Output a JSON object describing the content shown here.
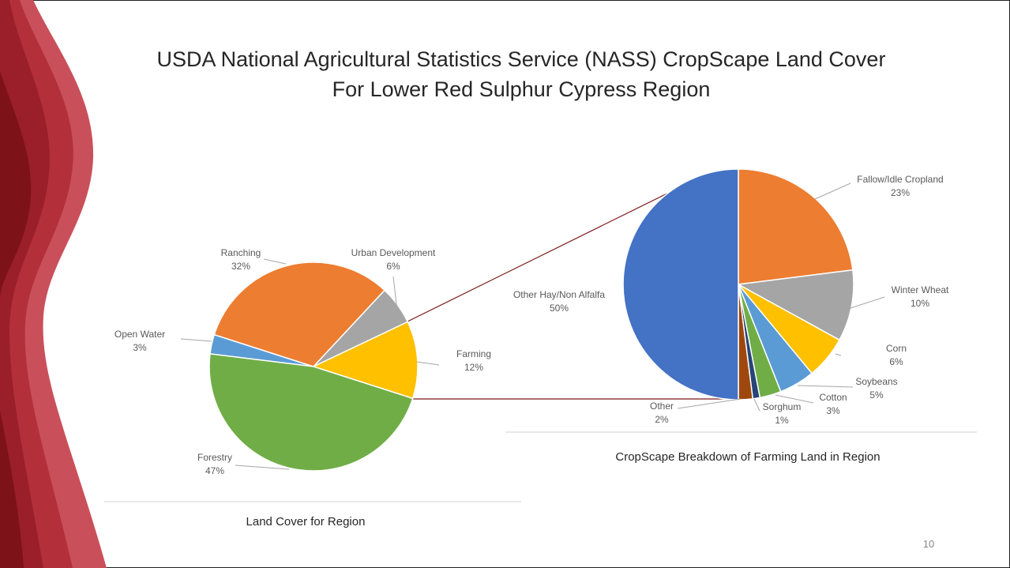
{
  "title": [
    "USDA National Agricultural Statistics Service (NASS) CropScape Land Cover",
    "For Lower Red Sulphur Cypress Region"
  ],
  "page_number": 10,
  "chart_data": [
    {
      "type": "pie",
      "title": "Land Cover for Region",
      "categories": [
        "Open Water",
        "Ranching",
        "Urban Development",
        "Farming",
        "Forestry"
      ],
      "values": [
        3,
        32,
        6,
        12,
        47
      ],
      "value_labels": [
        "3%",
        "32%",
        "6%",
        "12%",
        "47%"
      ],
      "colors": [
        "#5b9bd5",
        "#ed7d31",
        "#a5a5a5",
        "#ffc000",
        "#70ad47"
      ]
    },
    {
      "type": "pie",
      "title": "CropScape Breakdown of Farming Land in Region",
      "categories": [
        "Fallow/Idle Cropland",
        "Winter Wheat",
        "Corn",
        "Soybeans",
        "Cotton",
        "Sorghum",
        "Other",
        "Other Hay/Non Alfalfa"
      ],
      "values": [
        23,
        10,
        6,
        5,
        3,
        1,
        2,
        50
      ],
      "value_labels": [
        "23%",
        "10%",
        "6%",
        "5%",
        "3%",
        "1%",
        "2%",
        "50%"
      ],
      "colors": [
        "#ed7d31",
        "#a5a5a5",
        "#ffc000",
        "#5b9bd5",
        "#70ad47",
        "#264478",
        "#9e480e",
        "#4472c4"
      ]
    }
  ]
}
